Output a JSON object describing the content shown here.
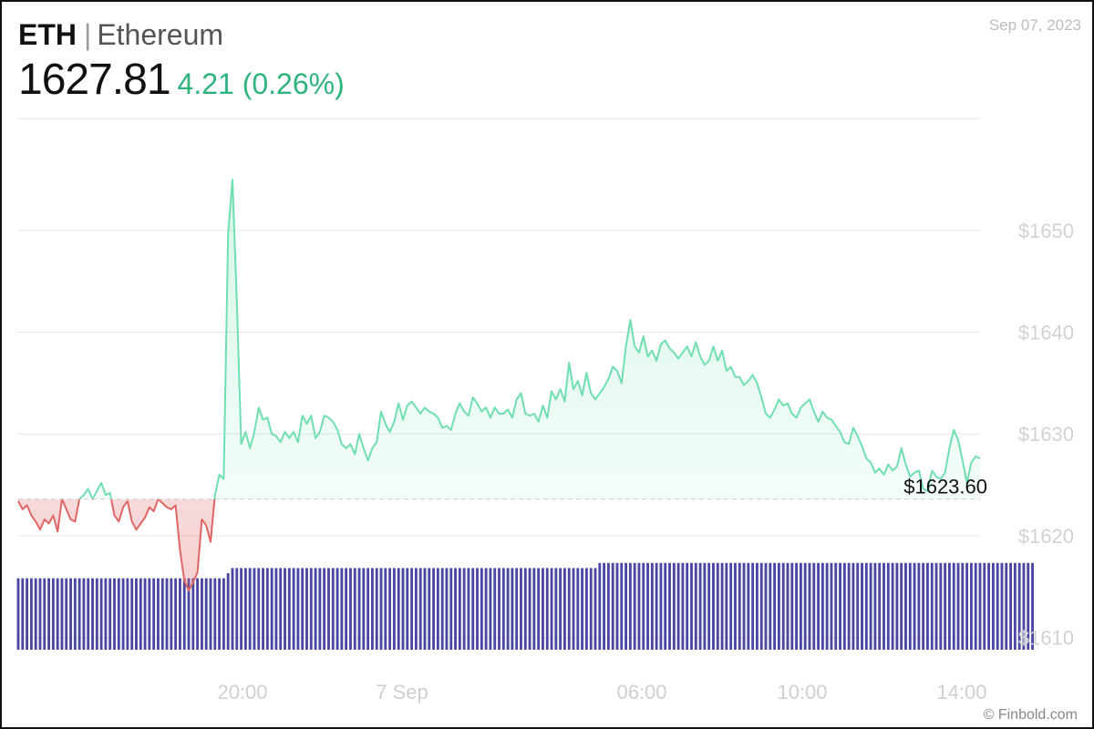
{
  "header": {
    "ticker": "ETH",
    "name": "Ethereum",
    "price": "1627.81",
    "change": "4.21 (0.26%)",
    "date": "Sep 07, 2023"
  },
  "branding": "© Finbold.com",
  "colors": {
    "up": "#2fb37f",
    "up_line": "#6fdfb1",
    "down_line": "#e06666",
    "volume": "#4a47a3"
  },
  "chart_data": {
    "type": "area",
    "title": "",
    "xlabel": "",
    "ylabel": "",
    "x_tick_labels": [
      "20:00",
      "7 Sep",
      "06:00",
      "10:00",
      "14:00"
    ],
    "y_ticks": [
      1610,
      1620,
      1630,
      1640,
      1650
    ],
    "y_tick_labels": [
      "$1610",
      "$1620",
      "$1630",
      "$1640",
      "$1650"
    ],
    "ylim": [
      1608.8,
      1661
    ],
    "reference_line": {
      "value": 1623.6,
      "label": "$1623.60"
    },
    "series": [
      {
        "values": [
          1623.4,
          1622.6,
          1623.0,
          1622.0,
          1621.4,
          1620.6,
          1621.6,
          1621.2,
          1622.0,
          1620.4,
          1623.6,
          1622.6,
          1621.6,
          1621.4,
          1623.6,
          1624.0,
          1624.6,
          1623.6,
          1624.4,
          1625.2,
          1624.0,
          1624.2,
          1622.0,
          1621.4,
          1622.8,
          1623.4,
          1621.4,
          1620.6,
          1621.2,
          1621.8,
          1622.8,
          1622.4,
          1623.6,
          1623.2,
          1622.8,
          1622.6,
          1623.0,
          1618.6,
          1615.6,
          1614.6,
          1615.4,
          1616.4,
          1621.6,
          1621.0,
          1619.4,
          1624.0,
          1626.0,
          1625.6,
          1649.6,
          1655.0,
          1643.0,
          1629.0,
          1630.2,
          1628.6,
          1630.2,
          1632.6,
          1631.4,
          1631.6,
          1630.0,
          1629.8,
          1629.2,
          1630.2,
          1629.6,
          1630.2,
          1629.2,
          1631.8,
          1631.0,
          1631.8,
          1629.6,
          1630.2,
          1631.8,
          1631.6,
          1631.2,
          1630.4,
          1629.0,
          1628.6,
          1629.0,
          1628.0,
          1630.0,
          1628.6,
          1627.4,
          1628.6,
          1629.2,
          1632.2,
          1631.0,
          1630.2,
          1631.2,
          1633.0,
          1631.4,
          1632.8,
          1633.2,
          1632.6,
          1632.0,
          1632.6,
          1632.2,
          1632.0,
          1631.6,
          1630.6,
          1630.8,
          1630.4,
          1632.0,
          1633.0,
          1632.2,
          1631.8,
          1633.6,
          1633.0,
          1632.2,
          1632.6,
          1631.6,
          1632.6,
          1632.0,
          1632.0,
          1632.4,
          1631.6,
          1633.4,
          1634.0,
          1632.0,
          1631.8,
          1632.0,
          1631.2,
          1632.8,
          1631.6,
          1634.2,
          1633.4,
          1634.4,
          1633.2,
          1637.0,
          1634.4,
          1635.2,
          1633.8,
          1636.0,
          1634.0,
          1633.4,
          1634.0,
          1634.6,
          1635.4,
          1636.6,
          1636.2,
          1635.0,
          1638.6,
          1641.2,
          1638.6,
          1638.0,
          1639.6,
          1637.6,
          1638.2,
          1637.2,
          1638.8,
          1639.2,
          1638.4,
          1638.0,
          1637.4,
          1638.0,
          1638.6,
          1637.6,
          1639.0,
          1637.6,
          1636.8,
          1637.2,
          1638.6,
          1637.2,
          1638.2,
          1636.2,
          1636.6,
          1635.6,
          1635.6,
          1634.8,
          1635.2,
          1635.8,
          1635.0,
          1633.6,
          1632.0,
          1631.6,
          1632.4,
          1633.4,
          1632.8,
          1633.0,
          1632.0,
          1631.6,
          1632.6,
          1633.0,
          1633.4,
          1632.2,
          1631.2,
          1632.2,
          1631.6,
          1631.4,
          1630.8,
          1630.2,
          1629.2,
          1629.0,
          1630.6,
          1629.8,
          1628.8,
          1627.6,
          1627.2,
          1626.2,
          1626.6,
          1626.0,
          1627.0,
          1626.4,
          1626.8,
          1628.6,
          1627.0,
          1625.8,
          1626.2,
          1626.4,
          1624.6,
          1624.4,
          1626.4,
          1625.8,
          1625.6,
          1626.2,
          1628.6,
          1630.4,
          1629.4,
          1627.4,
          1625.2,
          1627.2,
          1627.8,
          1627.6
        ]
      }
    ],
    "volume": [
      14,
      14,
      14,
      14,
      14,
      14,
      14,
      14,
      14,
      14,
      14,
      14,
      14,
      14,
      14,
      14,
      14,
      14,
      14,
      14,
      14,
      14,
      14,
      14,
      14,
      14,
      14,
      14,
      14,
      14,
      14,
      14,
      14,
      14,
      14,
      14,
      14,
      14,
      14,
      14,
      14,
      14,
      14,
      14,
      14,
      14,
      14,
      14,
      15,
      16,
      16,
      16,
      16,
      16,
      16,
      16,
      16,
      16,
      16,
      16,
      16,
      16,
      16,
      16,
      16,
      16,
      16,
      16,
      16,
      16,
      16,
      16,
      16,
      16,
      16,
      16,
      16,
      16,
      16,
      16,
      16,
      16,
      16,
      16,
      16,
      16,
      16,
      16,
      16,
      16,
      16,
      16,
      16,
      16,
      16,
      16,
      16,
      16,
      16,
      16,
      16,
      16,
      16,
      16,
      16,
      16,
      16,
      16,
      16,
      16,
      16,
      16,
      16,
      16,
      16,
      16,
      16,
      16,
      16,
      16,
      16,
      16,
      16,
      16,
      16,
      16,
      16,
      16,
      16,
      16,
      16,
      16,
      16,
      17,
      17,
      17,
      17,
      17,
      17,
      17,
      17,
      17,
      17,
      17,
      17,
      17,
      17,
      17,
      17,
      17,
      17,
      17,
      17,
      17,
      17,
      17,
      17,
      17,
      17,
      17,
      17,
      17,
      17,
      17,
      17,
      17,
      17,
      17,
      17,
      17,
      17,
      17,
      17,
      17,
      17,
      17,
      17,
      17,
      17,
      17,
      17,
      17,
      17,
      17,
      17,
      17,
      17,
      17,
      17,
      17,
      17,
      17,
      17,
      17,
      17,
      17,
      17,
      17,
      17,
      17,
      17,
      17,
      17,
      17,
      17,
      17,
      17,
      17,
      17,
      17,
      17,
      17,
      17,
      17,
      17,
      17,
      17,
      17,
      17,
      17,
      17,
      17,
      17,
      17,
      17,
      17,
      17,
      17,
      17,
      17,
      17,
      17,
      17
    ]
  }
}
